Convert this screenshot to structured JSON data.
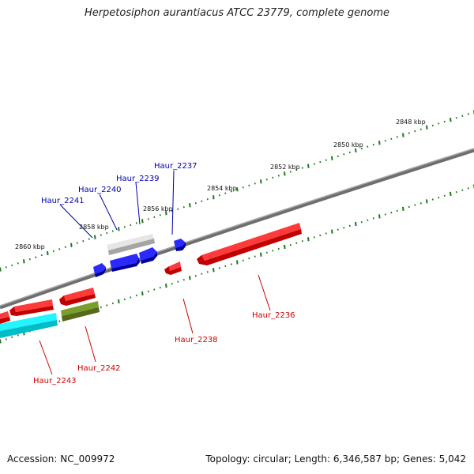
{
  "title": "Herpetosiphon aurantiacus ATCC 23779, complete genome",
  "footer": {
    "accession": "Accession: NC_009972",
    "summary": "Topology: circular; Length: 6,346,587 bp; Genes: 5,042"
  },
  "colors": {
    "backbone": "#7a7a7a",
    "tick": "#1a7a1a",
    "forward_label": "#0000aa",
    "reverse_label": "#cc0000",
    "blue_gene": "#0000ee",
    "red_gene": "#ee0000",
    "grey_gene": "#b0b0b0",
    "olive_gene": "#6b8e23",
    "cyan_gene": "#00e5ee"
  },
  "scale_labels": [
    "2848 kbp",
    "2850 kbp",
    "2852 kbp",
    "2854 kbp",
    "2856 kbp",
    "2858 kbp",
    "2860 kbp"
  ],
  "gene_labels": {
    "forward": [
      "Haur_2237",
      "Haur_2239",
      "Haur_2240",
      "Haur_2241"
    ],
    "reverse": [
      "Haur_2236",
      "Haur_2238",
      "Haur_2242",
      "Haur_2243"
    ]
  }
}
